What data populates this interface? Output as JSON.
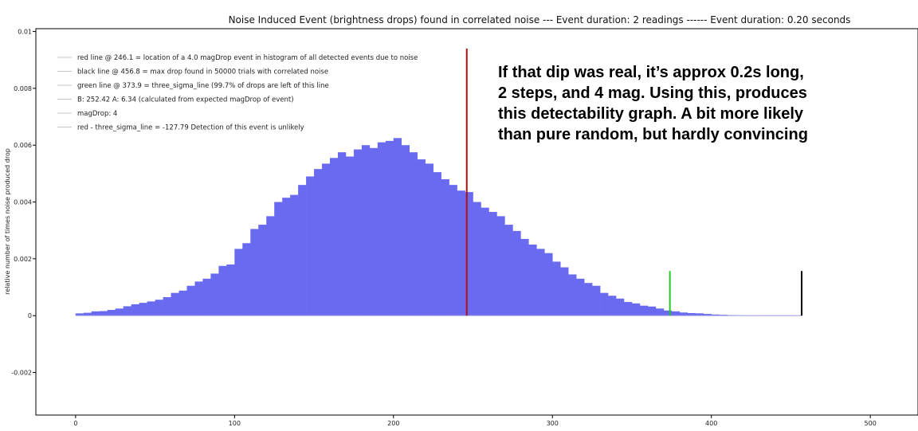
{
  "chart_data": {
    "type": "bar",
    "title": "Noise Induced Event (brightness drops) found in correlated noise --- Event duration: 2 readings ------ Event duration: 0.20 seconds",
    "xlabel": "",
    "ylabel": "relative number of times noise produced drop",
    "xlim": [
      -25,
      530
    ],
    "ylim": [
      -0.0035,
      0.0101
    ],
    "x_ticks": [
      0,
      100,
      200,
      300,
      400,
      500
    ],
    "y_ticks": [
      -0.002,
      0,
      0.002,
      0.004,
      0.006,
      0.008,
      0.01
    ],
    "x_tick_labels": [
      "0",
      "100",
      "200",
      "300",
      "400",
      "500"
    ],
    "y_tick_labels": [
      "-0.002",
      "0",
      "0.002",
      "0.004",
      "0.006",
      "0.008",
      "0.01"
    ],
    "grid": false,
    "legend_placement": "top-left",
    "bar_color": "#6a6af0",
    "bin_width": 5,
    "bin_starts": [
      0,
      5,
      10,
      15,
      20,
      25,
      30,
      35,
      40,
      45,
      50,
      55,
      60,
      65,
      70,
      75,
      80,
      85,
      90,
      95,
      100,
      105,
      110,
      115,
      120,
      125,
      130,
      135,
      140,
      145,
      150,
      155,
      160,
      165,
      170,
      175,
      180,
      185,
      190,
      195,
      200,
      205,
      210,
      215,
      220,
      225,
      230,
      235,
      240,
      245,
      250,
      255,
      260,
      265,
      270,
      275,
      280,
      285,
      290,
      295,
      300,
      305,
      310,
      315,
      320,
      325,
      330,
      335,
      340,
      345,
      350,
      355,
      360,
      365,
      370,
      375,
      380,
      385,
      390,
      395,
      400,
      405,
      410,
      415,
      420,
      425,
      430,
      435,
      440,
      445
    ],
    "values": [
      8e-05,
      0.0001,
      0.00015,
      0.00016,
      0.0002,
      0.00025,
      0.00033,
      0.0004,
      0.00045,
      0.0005,
      0.00056,
      0.00065,
      0.0008,
      0.00088,
      0.00105,
      0.0012,
      0.0013,
      0.00148,
      0.00175,
      0.0018,
      0.00235,
      0.00255,
      0.00305,
      0.0032,
      0.0035,
      0.004,
      0.00415,
      0.00425,
      0.0046,
      0.0049,
      0.00516,
      0.00535,
      0.00555,
      0.00575,
      0.0056,
      0.00585,
      0.006,
      0.0059,
      0.0061,
      0.00615,
      0.00625,
      0.006,
      0.00575,
      0.0055,
      0.00535,
      0.00505,
      0.0048,
      0.0046,
      0.0044,
      0.00435,
      0.004,
      0.0038,
      0.00365,
      0.0035,
      0.0032,
      0.00298,
      0.0027,
      0.0025,
      0.00235,
      0.0022,
      0.0019,
      0.0017,
      0.00145,
      0.0013,
      0.00115,
      0.00105,
      0.0008,
      0.0007,
      0.0006,
      0.00048,
      0.00043,
      0.00035,
      0.00032,
      0.00025,
      0.00018,
      0.00015,
      0.00011,
      9e-05,
      8e-05,
      6e-05,
      4e-05,
      3e-05,
      2e-05,
      1e-05,
      5e-06,
      3e-06,
      2e-06,
      1e-06,
      1e-06,
      1e-06
    ],
    "vertical_lines": [
      {
        "name": "red line",
        "x": 246.1,
        "y_top": 0.0094,
        "color": "#b01010"
      },
      {
        "name": "green line",
        "x": 373.9,
        "y_top": 0.00157,
        "color": "#22cc22"
      },
      {
        "name": "black line",
        "x": 456.8,
        "y_top": 0.00157,
        "color": "#000000"
      }
    ],
    "legend": [
      "red line @ 246.1 = location of a 4.0 magDrop event in histogram of all detected events due to noise",
      "black line @ 456.8 = max drop found in 50000 trials with correlated noise",
      "green line @ 373.9 = three_sigma_line (99.7% of drops are left of this line",
      "B: 252.42 A: 6.34 (calculated from expected magDrop of event)",
      "magDrop: 4",
      "red - three_sigma_line = -127.79 Detection of this event is unlikely"
    ],
    "annotation": [
      "If that dip was real, it’s approx 0.2s long,",
      "2 steps, and 4 mag. Using this, produces",
      "this detectability graph. A bit more likely",
      "than pure random, but hardly convincing"
    ]
  }
}
